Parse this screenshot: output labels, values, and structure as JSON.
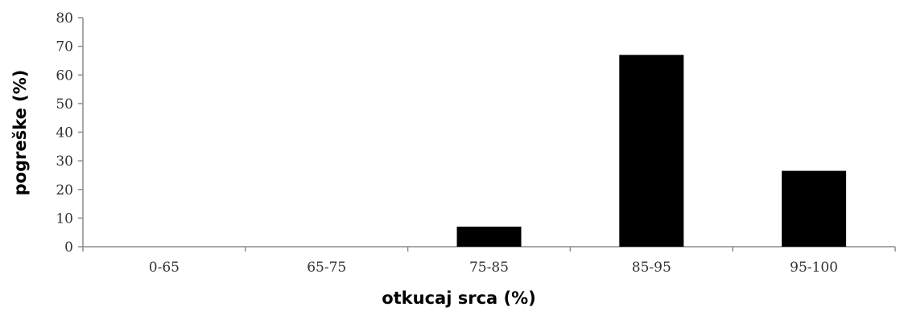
{
  "chart_data": {
    "type": "bar",
    "categories": [
      "0-65",
      "65-75",
      "75-85",
      "85-95",
      "95-100"
    ],
    "values": [
      0,
      0,
      7,
      67,
      26.5
    ],
    "xlabel": "otkucaj srca (%)",
    "ylabel": "pogreške (%)",
    "ylim": [
      0,
      80
    ],
    "yticks": [
      0,
      10,
      20,
      30,
      40,
      50,
      60,
      70,
      80
    ],
    "grid": false,
    "legend": "none",
    "bar_color": "#000000"
  }
}
